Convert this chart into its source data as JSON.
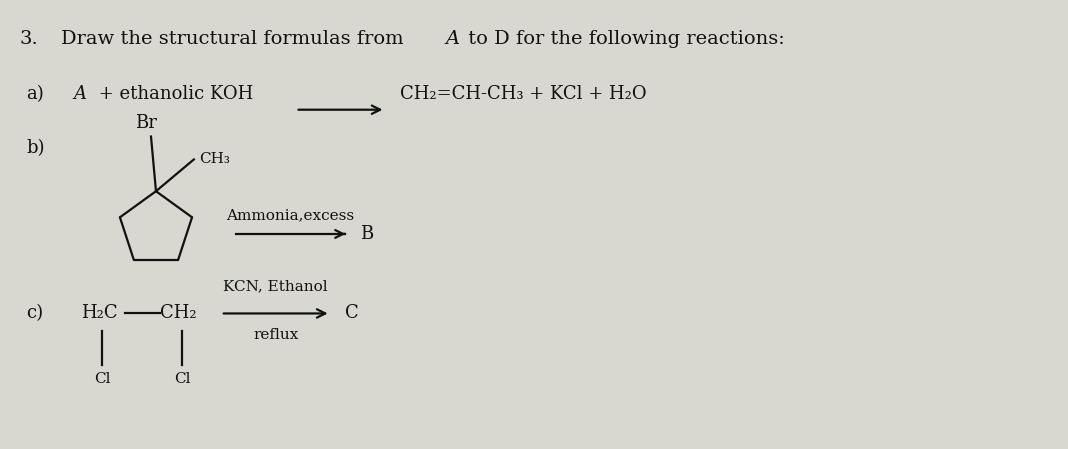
{
  "bg_color": "#d8d8d0",
  "text_color": "#111111",
  "title_num": "3.",
  "title_rest": "Draw the structural formulas from ",
  "title_italic": "A",
  "title_end": " to D for the following reactions:",
  "a_label": "a)",
  "a_italic": "A",
  "a_rest": " + ethanolic KOH",
  "a_product": "CH₂=CH-CH₃ + KCl + H₂O",
  "b_label": "b)",
  "b_br": "Br",
  "b_ch3": "CH₃",
  "b_reagent": "Ammonia,excess",
  "b_product": "B",
  "c_label": "c)",
  "c_h2c": "H₂C",
  "c_ch2": "CH₂",
  "c_cl": "Cl",
  "c_reagent_top": "KCN, Ethanol",
  "c_reagent_bot": "reflux",
  "c_product": "C",
  "fs_title": 14,
  "fs_main": 13,
  "fs_small": 11,
  "lw": 1.6
}
